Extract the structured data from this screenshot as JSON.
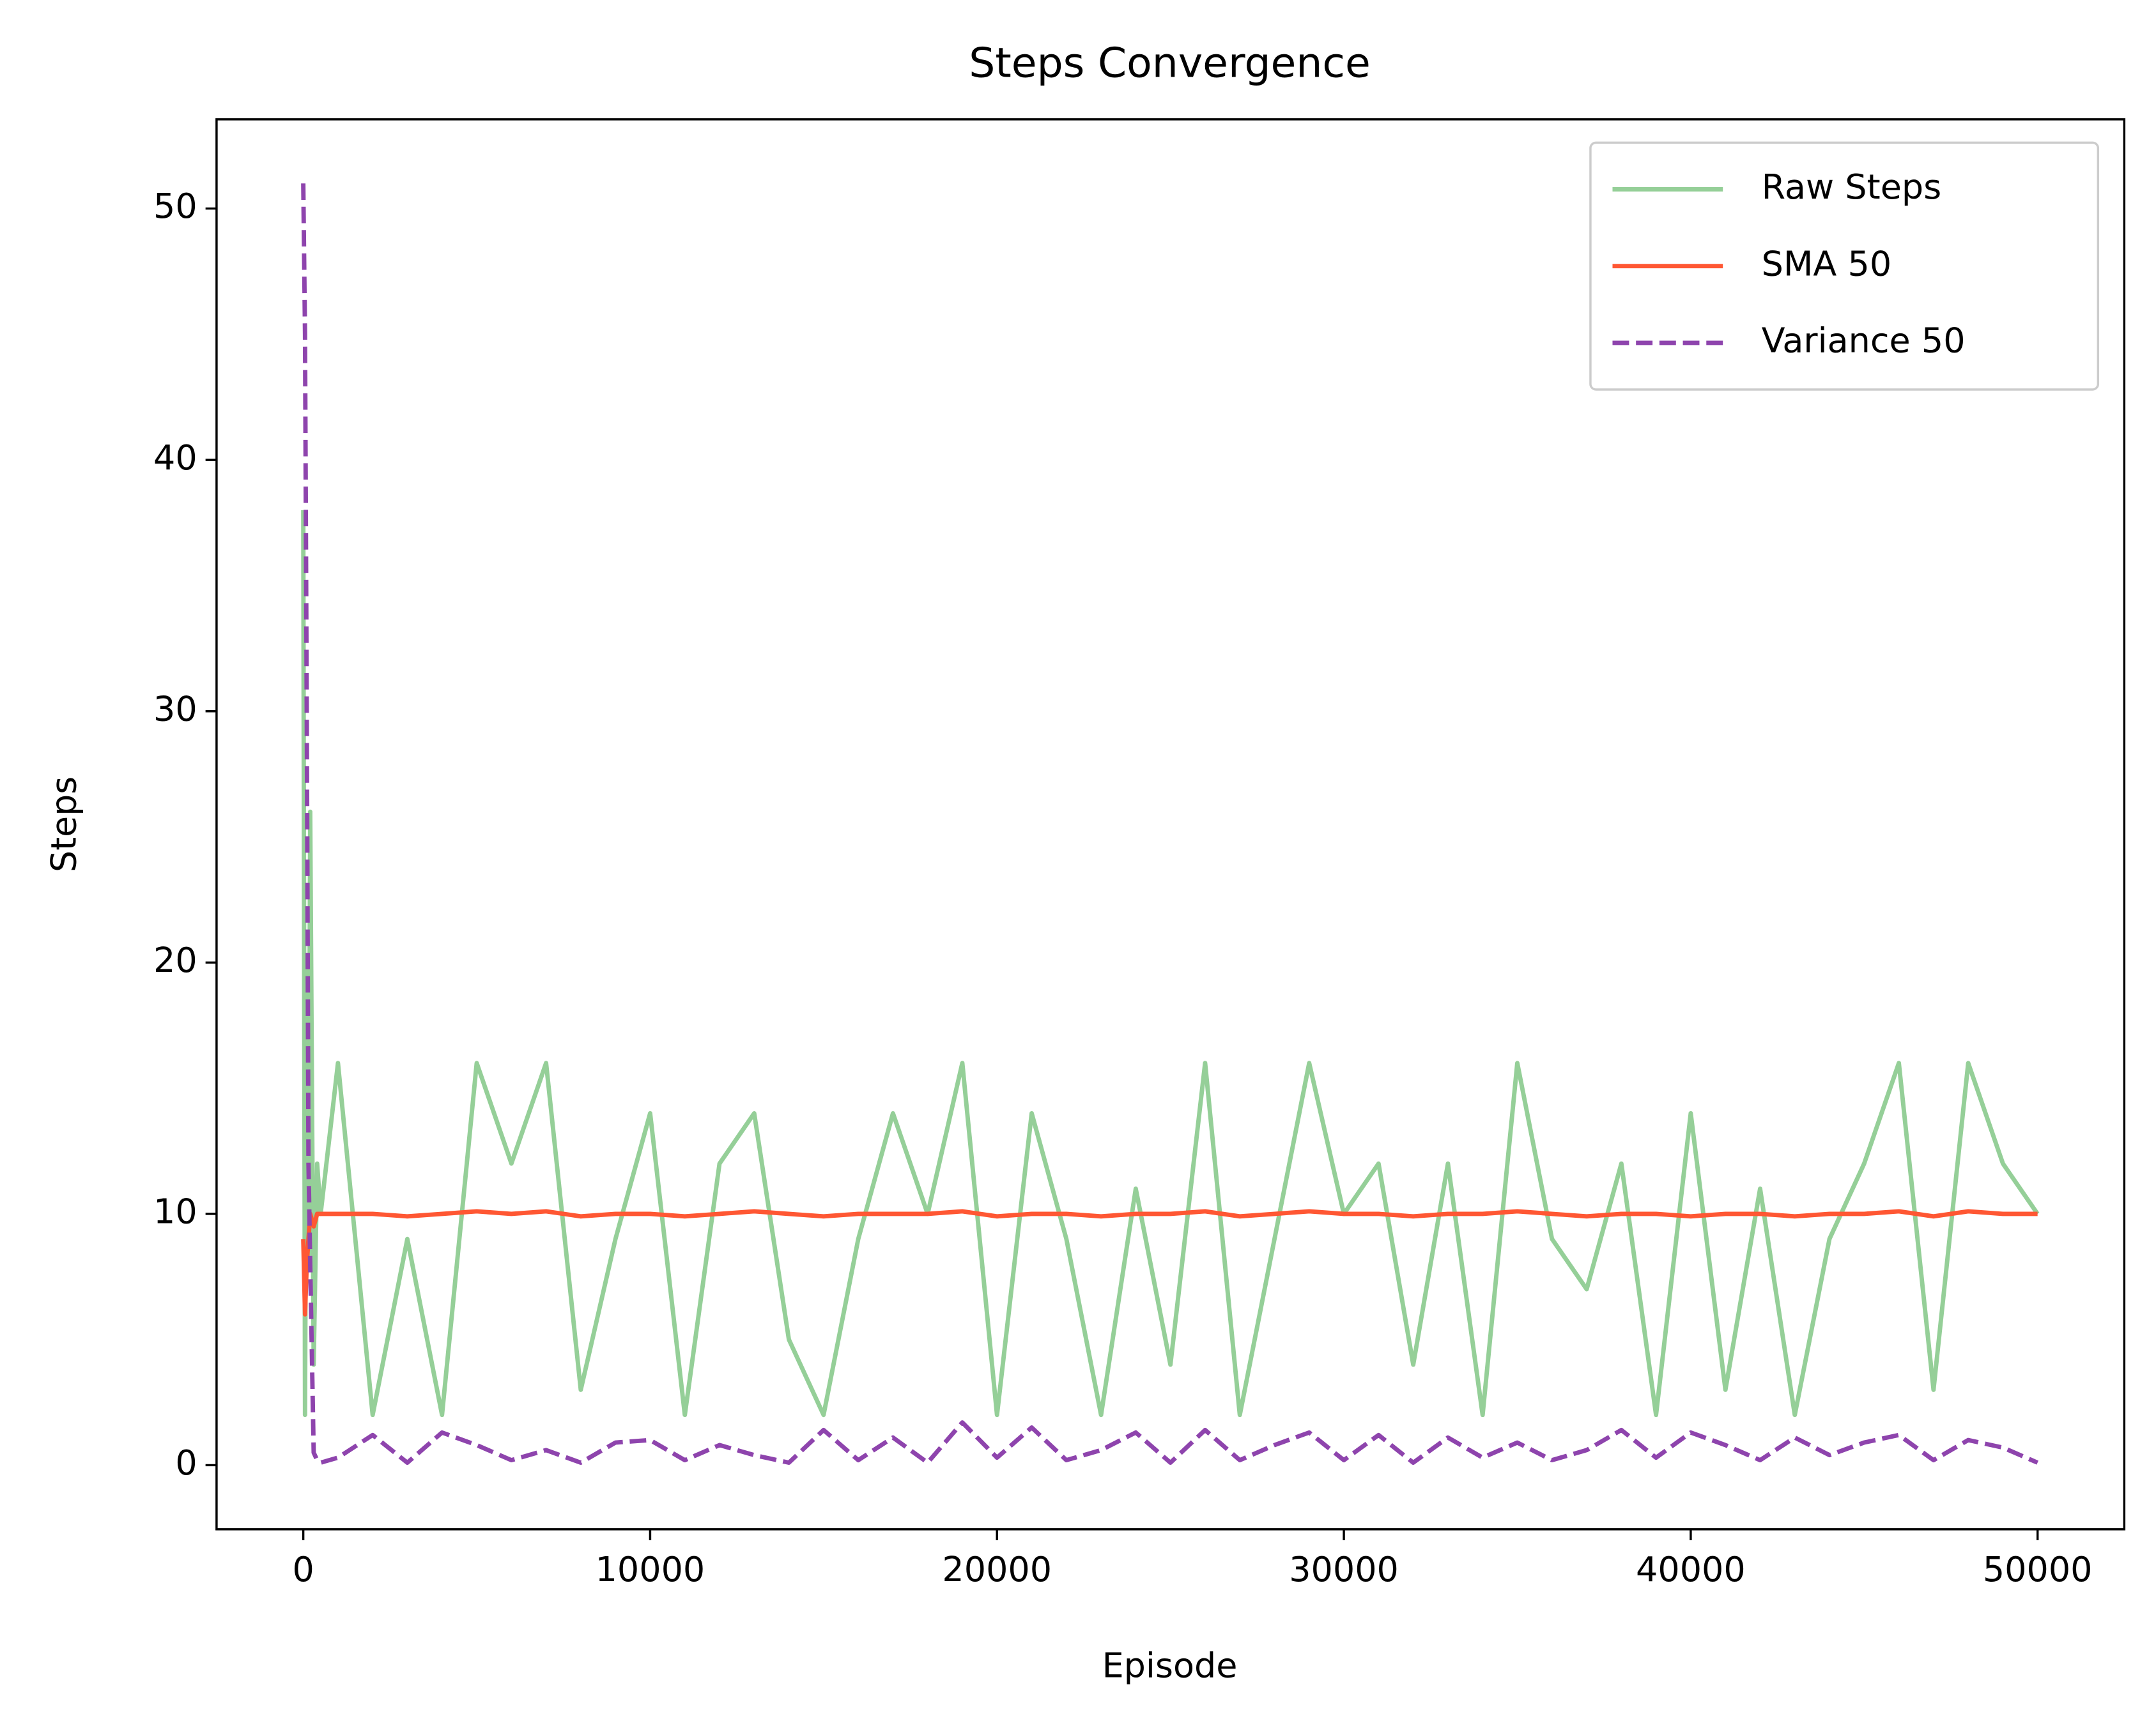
{
  "chart_data": {
    "type": "line",
    "title": "Steps Convergence",
    "xlabel": "Episode",
    "ylabel": "Steps",
    "xlim": [
      -2500,
      52499
    ],
    "ylim": [
      -2.55,
      53.55
    ],
    "xticks": [
      0,
      10000,
      20000,
      30000,
      40000,
      50000
    ],
    "yticks": [
      0,
      10,
      20,
      30,
      40,
      50
    ],
    "legend": "upper right",
    "x": [
      0,
      50,
      100,
      150,
      200,
      300,
      400,
      500,
      1000,
      2000,
      3000,
      4000,
      5000,
      6000,
      7000,
      8000,
      9000,
      10000,
      11000,
      12000,
      13000,
      14000,
      15000,
      16000,
      17000,
      18000,
      19000,
      20000,
      21000,
      22000,
      23000,
      24000,
      25000,
      26000,
      27000,
      28000,
      29000,
      30000,
      31000,
      32000,
      33000,
      34000,
      35000,
      36000,
      37000,
      38000,
      39000,
      40000,
      41000,
      42000,
      43000,
      44000,
      45000,
      46000,
      47000,
      48000,
      49000,
      49999
    ],
    "series": [
      {
        "name": "Raw Steps",
        "color": "#95cf98",
        "linestyle": "solid",
        "values": [
          38,
          2,
          20,
          8,
          26,
          4,
          12,
          10,
          16,
          2,
          9,
          2,
          16,
          12,
          16,
          3,
          9,
          14,
          2,
          12,
          14,
          5,
          2,
          9,
          14,
          10,
          16,
          2,
          14,
          9,
          2,
          11,
          4,
          16,
          2,
          9,
          16,
          10,
          12,
          4,
          12,
          2,
          16,
          9,
          7,
          12,
          2,
          14,
          3,
          11,
          2,
          9,
          12,
          16,
          3,
          16,
          12,
          10
        ]
      },
      {
        "name": "SMA 50",
        "color": "#ff5733",
        "linestyle": "solid",
        "values": [
          9,
          6,
          8,
          9,
          10,
          9.5,
          10,
          10,
          10,
          10,
          9.9,
          10,
          10.1,
          10,
          10.1,
          9.9,
          10,
          10,
          9.9,
          10,
          10.1,
          10,
          9.9,
          10,
          10,
          10,
          10.1,
          9.9,
          10,
          10,
          9.9,
          10,
          10,
          10.1,
          9.9,
          10,
          10.1,
          10,
          10,
          9.9,
          10,
          10,
          10.1,
          10,
          9.9,
          10,
          10,
          9.9,
          10,
          10,
          9.9,
          10,
          10,
          10.1,
          9.9,
          10.1,
          10,
          10
        ]
      },
      {
        "name": "Variance 50",
        "color": "#8e44ad",
        "linestyle": "dashed",
        "values": [
          51,
          45,
          30,
          12,
          8,
          0.5,
          0.2,
          0.1,
          0.3,
          1.2,
          0.1,
          1.3,
          0.8,
          0.2,
          0.6,
          0.1,
          0.9,
          1.0,
          0.2,
          0.8,
          0.4,
          0.1,
          1.4,
          0.2,
          1.1,
          0.1,
          1.7,
          0.3,
          1.5,
          0.2,
          0.6,
          1.3,
          0.1,
          1.4,
          0.2,
          0.8,
          1.3,
          0.2,
          1.2,
          0.1,
          1.1,
          0.3,
          0.9,
          0.2,
          0.6,
          1.4,
          0.3,
          1.3,
          0.8,
          0.2,
          1.1,
          0.4,
          0.9,
          1.2,
          0.2,
          1.0,
          0.7,
          0.1
        ]
      }
    ]
  }
}
